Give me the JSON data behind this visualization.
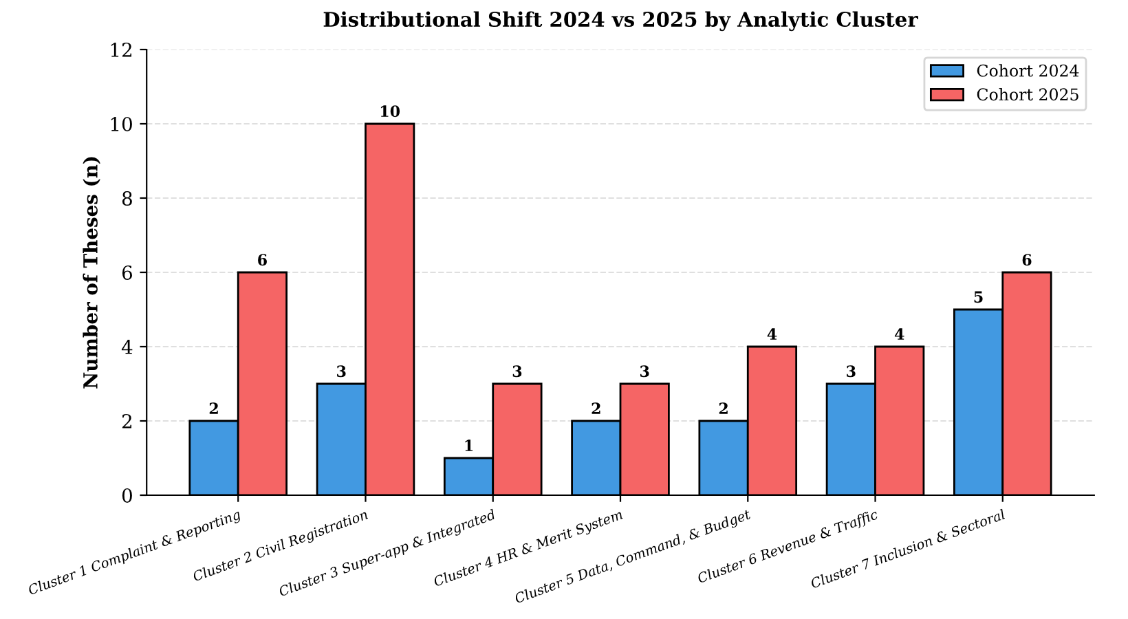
{
  "chart_data": {
    "type": "bar",
    "title": "Distributional Shift 2024 vs 2025 by Analytic Cluster",
    "ylabel": "Number of Theses (n)",
    "categories": [
      "Cluster 1 Complaint & Reporting",
      "Cluster 2 Civil Registration",
      "Cluster 3 Super-app & Integrated",
      "Cluster 4 HR & Merit System",
      "Cluster 5 Data, Command, & Budget",
      "Cluster 6 Revenue & Traffic",
      "Cluster 7 Inclusion & Sectoral"
    ],
    "series": [
      {
        "name": "Cohort 2024",
        "color": "#4299e1",
        "values": [
          2,
          3,
          1,
          2,
          2,
          3,
          5
        ]
      },
      {
        "name": "Cohort 2025",
        "color": "#f56565",
        "values": [
          6,
          10,
          3,
          3,
          4,
          4,
          6
        ]
      }
    ],
    "ylim": [
      0,
      12
    ],
    "yticks": [
      0,
      2,
      4,
      6,
      8,
      10,
      12
    ],
    "grid": "y",
    "legend": "top right",
    "data_labels": true
  }
}
